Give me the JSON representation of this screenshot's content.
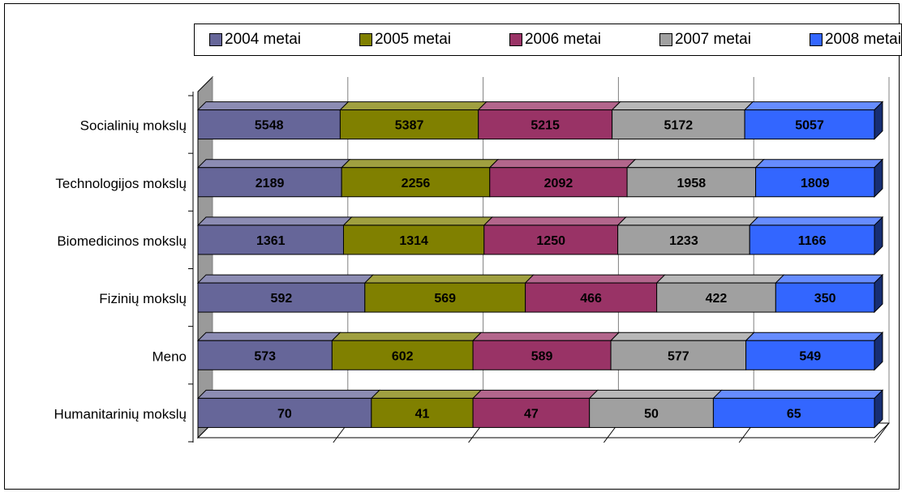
{
  "chart_data": {
    "type": "bar",
    "orientation": "horizontal",
    "stacked": "100%",
    "style_3d": true,
    "title": "",
    "xlabel": "",
    "ylabel": "",
    "grid": true,
    "legend_position": "top",
    "categories": [
      "Socialinių mokslų",
      "Technologijos mokslų",
      "Biomedicinos mokslų",
      "Fizinių mokslų",
      "Meno",
      "Humanitarinių mokslų"
    ],
    "series": [
      {
        "name": "2004 metai",
        "color": "#666699",
        "values": [
          5548,
          2189,
          1361,
          592,
          573,
          70
        ]
      },
      {
        "name": "2005 metai",
        "color": "#808000",
        "values": [
          5387,
          2256,
          1314,
          569,
          602,
          41
        ]
      },
      {
        "name": "2006 metai",
        "color": "#993366",
        "values": [
          5215,
          2092,
          1250,
          466,
          589,
          47
        ]
      },
      {
        "name": "2007 metai",
        "color": "#a0a0a0",
        "values": [
          5172,
          1958,
          1233,
          422,
          577,
          50
        ]
      },
      {
        "name": "2008 metai",
        "color": "#3366ff",
        "values": [
          5057,
          1809,
          1166,
          350,
          549,
          65
        ]
      }
    ]
  }
}
